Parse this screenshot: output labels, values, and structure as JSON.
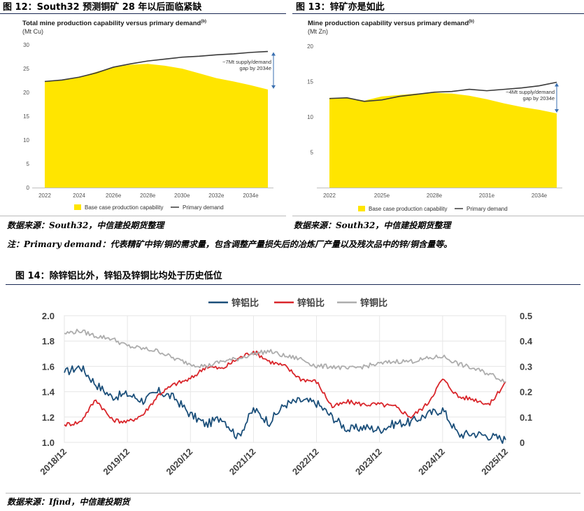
{
  "fig12": {
    "title": "图 12：South32 预测铜矿 28 年以后面临紧缺",
    "source": "数据来源：South32，中信建投期货整理"
  },
  "fig13": {
    "title": "图 13：锌矿亦是如此",
    "source": "数据来源：South32，中信建投期货整理"
  },
  "note": "注：Primary demand：代表精矿中锌/铜的需求量，包含调整产量损失后的冶炼厂产量以及残次品中的锌/铜含量等。",
  "fig14": {
    "title": "图 14：除锌铝比外，锌铅及锌铜比均处于历史低位",
    "source": "数据来源：Ifind，中信建投期货"
  },
  "chart_data": [
    {
      "type": "area",
      "title": "Total mine production capability versus primary demand",
      "title_superscript": "(b)",
      "ylabel": "(Mt Cu)",
      "ylim": [
        0,
        30
      ],
      "yticks": [
        "0",
        "5",
        "10",
        "15",
        "20",
        "25",
        "30"
      ],
      "x": [
        "2022",
        "2023",
        "2024",
        "2025",
        "2026e",
        "2027e",
        "2028e",
        "2029e",
        "2030e",
        "2031e",
        "2032e",
        "2033e",
        "2034e",
        "2035e"
      ],
      "xtick_labels": [
        "2022",
        "2024",
        "2026e",
        "2028e",
        "2030e",
        "2032e",
        "2034e"
      ],
      "series": [
        {
          "name": "Base case production capability",
          "kind": "area",
          "color": "#ffe500",
          "values": [
            22.3,
            22.6,
            23.2,
            24.3,
            25.3,
            25.8,
            26.0,
            25.6,
            25.0,
            24.0,
            23.0,
            22.3,
            21.5,
            20.6
          ]
        },
        {
          "name": "Primary demand",
          "kind": "line",
          "color": "#3a3a3a",
          "values": [
            22.3,
            22.6,
            23.2,
            24.1,
            25.3,
            26.0,
            26.6,
            27.0,
            27.4,
            27.6,
            27.9,
            28.1,
            28.4,
            28.6
          ]
        }
      ],
      "annotation": "~7Mt supply/demand gap by 2034e",
      "legend_position": "bottom"
    },
    {
      "type": "area",
      "title": "Mine production capability versus primary demand",
      "title_superscript": "(b)",
      "ylabel": "(Mt Zn)",
      "ylim": [
        0,
        20
      ],
      "yticks": [
        "5",
        "10",
        "15",
        "20"
      ],
      "x": [
        "2022",
        "2023",
        "2024",
        "2025e",
        "2026e",
        "2027e",
        "2028e",
        "2029e",
        "2030e",
        "2031e",
        "2032e",
        "2033e",
        "2034e",
        "2035e"
      ],
      "xtick_labels": [
        "2022",
        "2025e",
        "2028e",
        "2031e",
        "2034e"
      ],
      "series": [
        {
          "name": "Base case production capability",
          "kind": "area",
          "color": "#ffe500",
          "values": [
            12.7,
            12.7,
            12.3,
            12.9,
            13.1,
            13.3,
            13.4,
            13.3,
            13.0,
            12.5,
            11.9,
            11.4,
            11.0,
            10.5
          ]
        },
        {
          "name": "Primary demand",
          "kind": "line",
          "color": "#3a3a3a",
          "values": [
            12.6,
            12.7,
            12.2,
            12.4,
            12.9,
            13.2,
            13.5,
            13.6,
            13.9,
            13.7,
            13.9,
            14.1,
            14.4,
            14.9
          ]
        }
      ],
      "annotation": "~4Mt supply/demand gap by 2034e",
      "legend_position": "bottom"
    },
    {
      "type": "line",
      "left_ylim": [
        1.0,
        2.0
      ],
      "left_yticks": [
        "1.0",
        "1.2",
        "1.4",
        "1.6",
        "1.8",
        "2.0"
      ],
      "right_ylim": [
        0,
        0.5
      ],
      "right_yticks": [
        "0",
        "0.1",
        "0.2",
        "0.3",
        "0.4",
        "0.5"
      ],
      "xtick_labels": [
        "2018/12",
        "2019/12",
        "2020/12",
        "2021/12",
        "2022/12",
        "2023/12",
        "2024/12",
        "2025/12"
      ],
      "x_range": [
        "2018/12",
        "2025/12"
      ],
      "legend_position": "top",
      "series": [
        {
          "name": "锌铝比",
          "axis": "left",
          "color": "#1b4f7a",
          "x": [
            "2018/12",
            "2019/03",
            "2019/06",
            "2019/09",
            "2019/12",
            "2020/03",
            "2020/06",
            "2020/09",
            "2020/12",
            "2021/03",
            "2021/06",
            "2021/09",
            "2021/12",
            "2022/03",
            "2022/06",
            "2022/09",
            "2022/12",
            "2023/03",
            "2023/06",
            "2023/09",
            "2023/12",
            "2024/03",
            "2024/06",
            "2024/09",
            "2024/12",
            "2025/03",
            "2025/06",
            "2025/09",
            "2025/12"
          ],
          "values": [
            1.55,
            1.6,
            1.46,
            1.36,
            1.38,
            1.33,
            1.4,
            1.35,
            1.22,
            1.14,
            1.2,
            1.04,
            1.26,
            1.16,
            1.3,
            1.33,
            1.31,
            1.2,
            1.1,
            1.12,
            1.1,
            1.15,
            1.16,
            1.22,
            1.26,
            1.06,
            1.07,
            1.05,
            1.02
          ]
        },
        {
          "name": "锌铅比",
          "axis": "right",
          "color": "#d9262b",
          "x": [
            "2018/12",
            "2019/03",
            "2019/06",
            "2019/09",
            "2019/12",
            "2020/03",
            "2020/06",
            "2020/09",
            "2020/12",
            "2021/03",
            "2021/06",
            "2021/09",
            "2021/12",
            "2022/03",
            "2022/06",
            "2022/09",
            "2022/12",
            "2023/03",
            "2023/06",
            "2023/09",
            "2023/12",
            "2024/03",
            "2024/06",
            "2024/09",
            "2024/12",
            "2025/03",
            "2025/06",
            "2025/09",
            "2025/12"
          ],
          "values": [
            0.07,
            0.08,
            0.17,
            0.09,
            0.08,
            0.11,
            0.19,
            0.23,
            0.25,
            0.3,
            0.29,
            0.33,
            0.36,
            0.32,
            0.3,
            0.25,
            0.24,
            0.14,
            0.16,
            0.15,
            0.15,
            0.14,
            0.1,
            0.15,
            0.25,
            0.18,
            0.17,
            0.15,
            0.24
          ]
        },
        {
          "name": "锌铜比",
          "axis": "right",
          "color": "#adadad",
          "x": [
            "2018/12",
            "2019/03",
            "2019/06",
            "2019/09",
            "2019/12",
            "2020/03",
            "2020/06",
            "2020/09",
            "2020/12",
            "2021/03",
            "2021/06",
            "2021/09",
            "2021/12",
            "2022/03",
            "2022/06",
            "2022/09",
            "2022/12",
            "2023/03",
            "2023/06",
            "2023/09",
            "2023/12",
            "2024/03",
            "2024/06",
            "2024/09",
            "2024/12",
            "2025/03",
            "2025/06",
            "2025/09",
            "2025/12"
          ],
          "values": [
            0.43,
            0.44,
            0.42,
            0.41,
            0.38,
            0.37,
            0.36,
            0.33,
            0.31,
            0.3,
            0.32,
            0.33,
            0.35,
            0.36,
            0.34,
            0.33,
            0.3,
            0.3,
            0.29,
            0.3,
            0.31,
            0.32,
            0.32,
            0.33,
            0.34,
            0.31,
            0.29,
            0.27,
            0.24
          ]
        }
      ]
    }
  ]
}
